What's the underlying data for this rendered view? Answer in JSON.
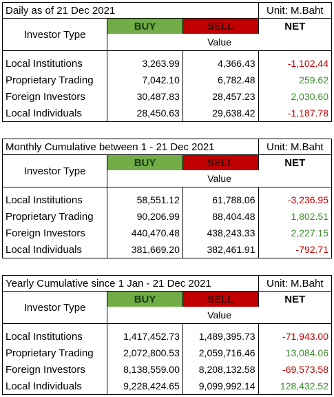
{
  "columns": {
    "investor_type": "Investor Type",
    "buy": "BUY",
    "sell": "SELL",
    "net": "NET",
    "value": "Value"
  },
  "colors": {
    "buy": "#70ad47",
    "sell": "#c00000",
    "negative": "#c00000",
    "positive": "#3c8a2e"
  },
  "tables": [
    {
      "title": "Daily as of 21 Dec 2021",
      "unit": "Unit: M.Baht",
      "rows": [
        {
          "label": "Local Institutions",
          "buy": "3,263.99",
          "sell": "4,366.43",
          "net": "-1,102.44",
          "sign": "neg"
        },
        {
          "label": "Proprietary Trading",
          "buy": "7,042.10",
          "sell": "6,782.48",
          "net": "259.62",
          "sign": "pos"
        },
        {
          "label": "Foreign Investors",
          "buy": "30,487.83",
          "sell": "28,457.23",
          "net": "2,030.60",
          "sign": "pos"
        },
        {
          "label": "Local Individuals",
          "buy": "28,450.63",
          "sell": "29,638.42",
          "net": "-1,187.78",
          "sign": "neg"
        }
      ]
    },
    {
      "title": "Monthly Cumulative between 1 - 21 Dec 2021",
      "unit": "Unit: M.Baht",
      "rows": [
        {
          "label": "Local Institutions",
          "buy": "58,551.12",
          "sell": "61,788.06",
          "net": "-3,236.95",
          "sign": "neg"
        },
        {
          "label": "Proprietary Trading",
          "buy": "90,206.99",
          "sell": "88,404.48",
          "net": "1,802.51",
          "sign": "pos"
        },
        {
          "label": "Foreign Investors",
          "buy": "440,470.48",
          "sell": "438,243.33",
          "net": "2,227.15",
          "sign": "pos"
        },
        {
          "label": "Local Individuals",
          "buy": "381,669.20",
          "sell": "382,461.91",
          "net": "-792.71",
          "sign": "neg"
        }
      ]
    },
    {
      "title": "Yearly Cumulative since 1 Jan - 21 Dec 2021",
      "unit": "Unit: M.Baht",
      "rows": [
        {
          "label": "Local Institutions",
          "buy": "1,417,452.73",
          "sell": "1,489,395.73",
          "net": "-71,943.00",
          "sign": "neg"
        },
        {
          "label": "Proprietary Trading",
          "buy": "2,072,800.53",
          "sell": "2,059,716.46",
          "net": "13,084.06",
          "sign": "pos"
        },
        {
          "label": "Foreign Investors",
          "buy": "8,138,559.00",
          "sell": "8,208,132.58",
          "net": "-69,573.58",
          "sign": "neg"
        },
        {
          "label": "Local Individuals",
          "buy": "9,228,424.65",
          "sell": "9,099,992.14",
          "net": "128,432.52",
          "sign": "pos"
        }
      ]
    }
  ]
}
